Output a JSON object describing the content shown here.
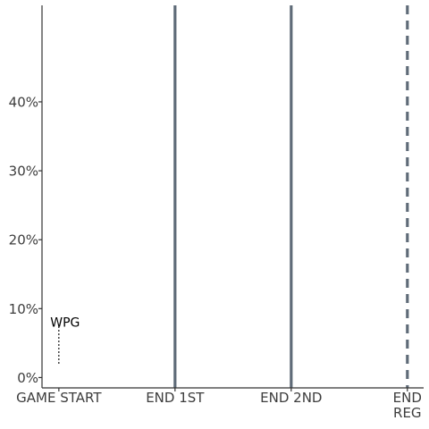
{
  "chart_data": {
    "type": "line",
    "title": "",
    "xlabel": "",
    "ylabel": "",
    "x_ticks": [
      {
        "value": 0,
        "lines": [
          "GAME START"
        ]
      },
      {
        "value": 20,
        "lines": [
          "END 1ST"
        ]
      },
      {
        "value": 40,
        "lines": [
          "END 2ND"
        ]
      },
      {
        "value": 60,
        "lines": [
          "END",
          "REG"
        ]
      }
    ],
    "xlim": [
      -2.9,
      62.8
    ],
    "y_ticks": [
      {
        "value": 0,
        "label": "0%"
      },
      {
        "value": 10,
        "label": "10%"
      },
      {
        "value": 20,
        "label": "20%"
      },
      {
        "value": 30,
        "label": "30%"
      },
      {
        "value": 40,
        "label": "40%"
      }
    ],
    "ylim": [
      -1.5,
      54
    ],
    "grid": false,
    "period_lines": [
      {
        "x": 20,
        "style": "solid"
      },
      {
        "x": 40,
        "style": "solid"
      },
      {
        "x": 60,
        "style": "dashed"
      }
    ],
    "period_line_color": "#5f6b78",
    "series": [
      {
        "name": "WPG",
        "x": [
          0,
          0
        ],
        "y": [
          2,
          7.5
        ],
        "style": "dotted",
        "color": "#000000"
      }
    ],
    "annotations": [
      {
        "text": "WPG",
        "x": 0,
        "y": 7.5
      }
    ]
  }
}
